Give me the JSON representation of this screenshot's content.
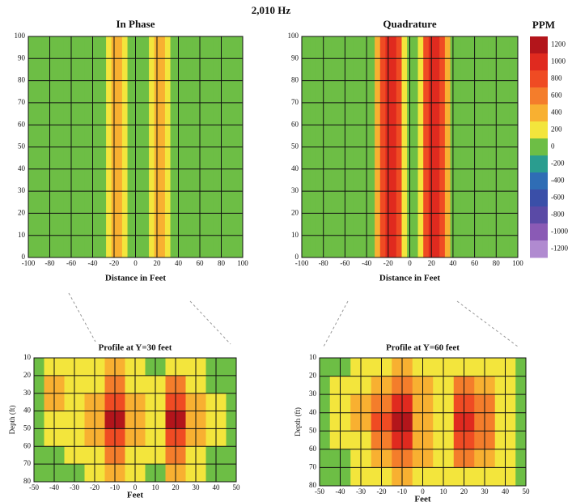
{
  "header": {
    "title": "2,010 Hz"
  },
  "colorbar": {
    "title": "PPM",
    "levels": [
      1200,
      1000,
      800,
      600,
      400,
      200,
      0,
      -200,
      -400,
      -600,
      -800,
      -1000,
      -1200
    ],
    "colors": [
      "#b3151b",
      "#e02a1f",
      "#ef4b23",
      "#f47d2b",
      "#f8b031",
      "#f3e53c",
      "#6dbe45",
      "#2a9d8f",
      "#2f6db5",
      "#3a4fa8",
      "#5a4aa6",
      "#8a5ab5",
      "#b08ad0"
    ]
  },
  "chart_data": [
    {
      "type": "heatmap",
      "title": "In Phase",
      "x_label": "Distance in Feet",
      "x": [
        -100,
        -95,
        -90,
        -85,
        -80,
        -75,
        -70,
        -65,
        -60,
        -55,
        -50,
        -45,
        -40,
        -35,
        -30,
        -25,
        -20,
        -15,
        -10,
        -5,
        0,
        5,
        10,
        15,
        20,
        25,
        30,
        35,
        40,
        45,
        50,
        55,
        60,
        65,
        70,
        75,
        80,
        85,
        90,
        95,
        100
      ],
      "values": [
        50,
        50,
        50,
        50,
        50,
        50,
        50,
        50,
        50,
        50,
        50,
        50,
        50,
        50,
        100,
        250,
        450,
        550,
        300,
        100,
        50,
        50,
        100,
        300,
        550,
        550,
        300,
        100,
        50,
        50,
        50,
        50,
        50,
        50,
        50,
        50,
        50,
        50,
        50,
        50,
        50
      ],
      "xlim": [
        -100,
        100
      ],
      "xticks": [
        -100,
        -80,
        -60,
        -40,
        -20,
        0,
        20,
        40,
        60,
        80,
        100
      ],
      "ylim": [
        0,
        100
      ],
      "yticks": [
        0,
        10,
        20,
        30,
        40,
        50,
        60,
        70,
        80,
        90,
        100
      ],
      "grid": true
    },
    {
      "type": "heatmap",
      "title": "Quadrature",
      "x_label": "Distance in Feet",
      "x": [
        -100,
        -95,
        -90,
        -85,
        -80,
        -75,
        -70,
        -65,
        -60,
        -55,
        -50,
        -45,
        -40,
        -35,
        -30,
        -25,
        -20,
        -15,
        -10,
        -5,
        0,
        5,
        10,
        15,
        20,
        25,
        30,
        35,
        40,
        45,
        50,
        55,
        60,
        65,
        70,
        75,
        80,
        85,
        90,
        95,
        100
      ],
      "values": [
        50,
        50,
        50,
        50,
        50,
        50,
        50,
        50,
        50,
        50,
        50,
        50,
        50,
        100,
        450,
        850,
        1050,
        1050,
        850,
        300,
        100,
        100,
        300,
        850,
        1050,
        1050,
        850,
        450,
        100,
        50,
        50,
        50,
        50,
        50,
        50,
        50,
        50,
        50,
        50,
        50,
        50
      ],
      "xlim": [
        -100,
        100
      ],
      "xticks": [
        -100,
        -80,
        -60,
        -40,
        -20,
        0,
        20,
        40,
        60,
        80,
        100
      ],
      "ylim": [
        0,
        100
      ],
      "yticks": [
        0,
        10,
        20,
        30,
        40,
        50,
        60,
        70,
        80,
        90,
        100
      ],
      "grid": true
    },
    {
      "type": "heatmap",
      "title": "Profile at Y=30 feet",
      "x_label": "Feet",
      "y_label": "Depth (ft)",
      "x": [
        -50,
        -40,
        -30,
        -20,
        -10,
        0,
        10,
        20,
        30,
        40,
        50
      ],
      "y": [
        15,
        25,
        35,
        45,
        55,
        65,
        75
      ],
      "values": [
        [
          100,
          300,
          200,
          200,
          400,
          200,
          100,
          300,
          200,
          100,
          50
        ],
        [
          100,
          400,
          300,
          300,
          600,
          300,
          200,
          600,
          300,
          100,
          50
        ],
        [
          100,
          400,
          300,
          400,
          900,
          400,
          300,
          900,
          400,
          200,
          50
        ],
        [
          100,
          300,
          300,
          500,
          1200,
          500,
          300,
          1200,
          500,
          200,
          50
        ],
        [
          100,
          200,
          200,
          400,
          900,
          400,
          200,
          900,
          400,
          200,
          50
        ],
        [
          50,
          100,
          200,
          300,
          600,
          300,
          200,
          600,
          300,
          100,
          50
        ],
        [
          50,
          100,
          100,
          200,
          400,
          200,
          100,
          400,
          200,
          100,
          50
        ]
      ],
      "xlim": [
        -50,
        50
      ],
      "xticks": [
        -50,
        -40,
        -30,
        -20,
        -10,
        0,
        10,
        20,
        30,
        40,
        50
      ],
      "ylim": [
        10,
        80
      ],
      "yticks": [
        10,
        20,
        30,
        40,
        50,
        60,
        70,
        80
      ],
      "invert_y": true,
      "grid": true
    },
    {
      "type": "heatmap",
      "title": "Profile at Y=60 feet",
      "x_label": "Feet",
      "y_label": "Depth (ft)",
      "x": [
        -50,
        -40,
        -30,
        -20,
        -10,
        0,
        10,
        20,
        30,
        40,
        50
      ],
      "y": [
        15,
        25,
        35,
        45,
        55,
        65,
        75
      ],
      "values": [
        [
          50,
          100,
          200,
          300,
          400,
          300,
          200,
          300,
          300,
          200,
          100
        ],
        [
          50,
          200,
          300,
          500,
          700,
          400,
          300,
          600,
          500,
          300,
          100
        ],
        [
          100,
          200,
          400,
          700,
          1000,
          500,
          300,
          900,
          600,
          300,
          100
        ],
        [
          100,
          200,
          400,
          800,
          1250,
          500,
          300,
          1100,
          700,
          300,
          100
        ],
        [
          100,
          200,
          300,
          700,
          1000,
          500,
          300,
          900,
          600,
          300,
          100
        ],
        [
          50,
          100,
          300,
          500,
          700,
          400,
          200,
          600,
          400,
          200,
          100
        ],
        [
          50,
          100,
          200,
          300,
          400,
          300,
          200,
          300,
          300,
          200,
          50
        ]
      ],
      "xlim": [
        -50,
        50
      ],
      "xticks": [
        -50,
        -40,
        -30,
        -20,
        -10,
        0,
        10,
        20,
        30,
        40,
        50
      ],
      "ylim": [
        10,
        80
      ],
      "yticks": [
        10,
        20,
        30,
        40,
        50,
        60,
        70,
        80
      ],
      "invert_y": true,
      "grid": true
    }
  ]
}
